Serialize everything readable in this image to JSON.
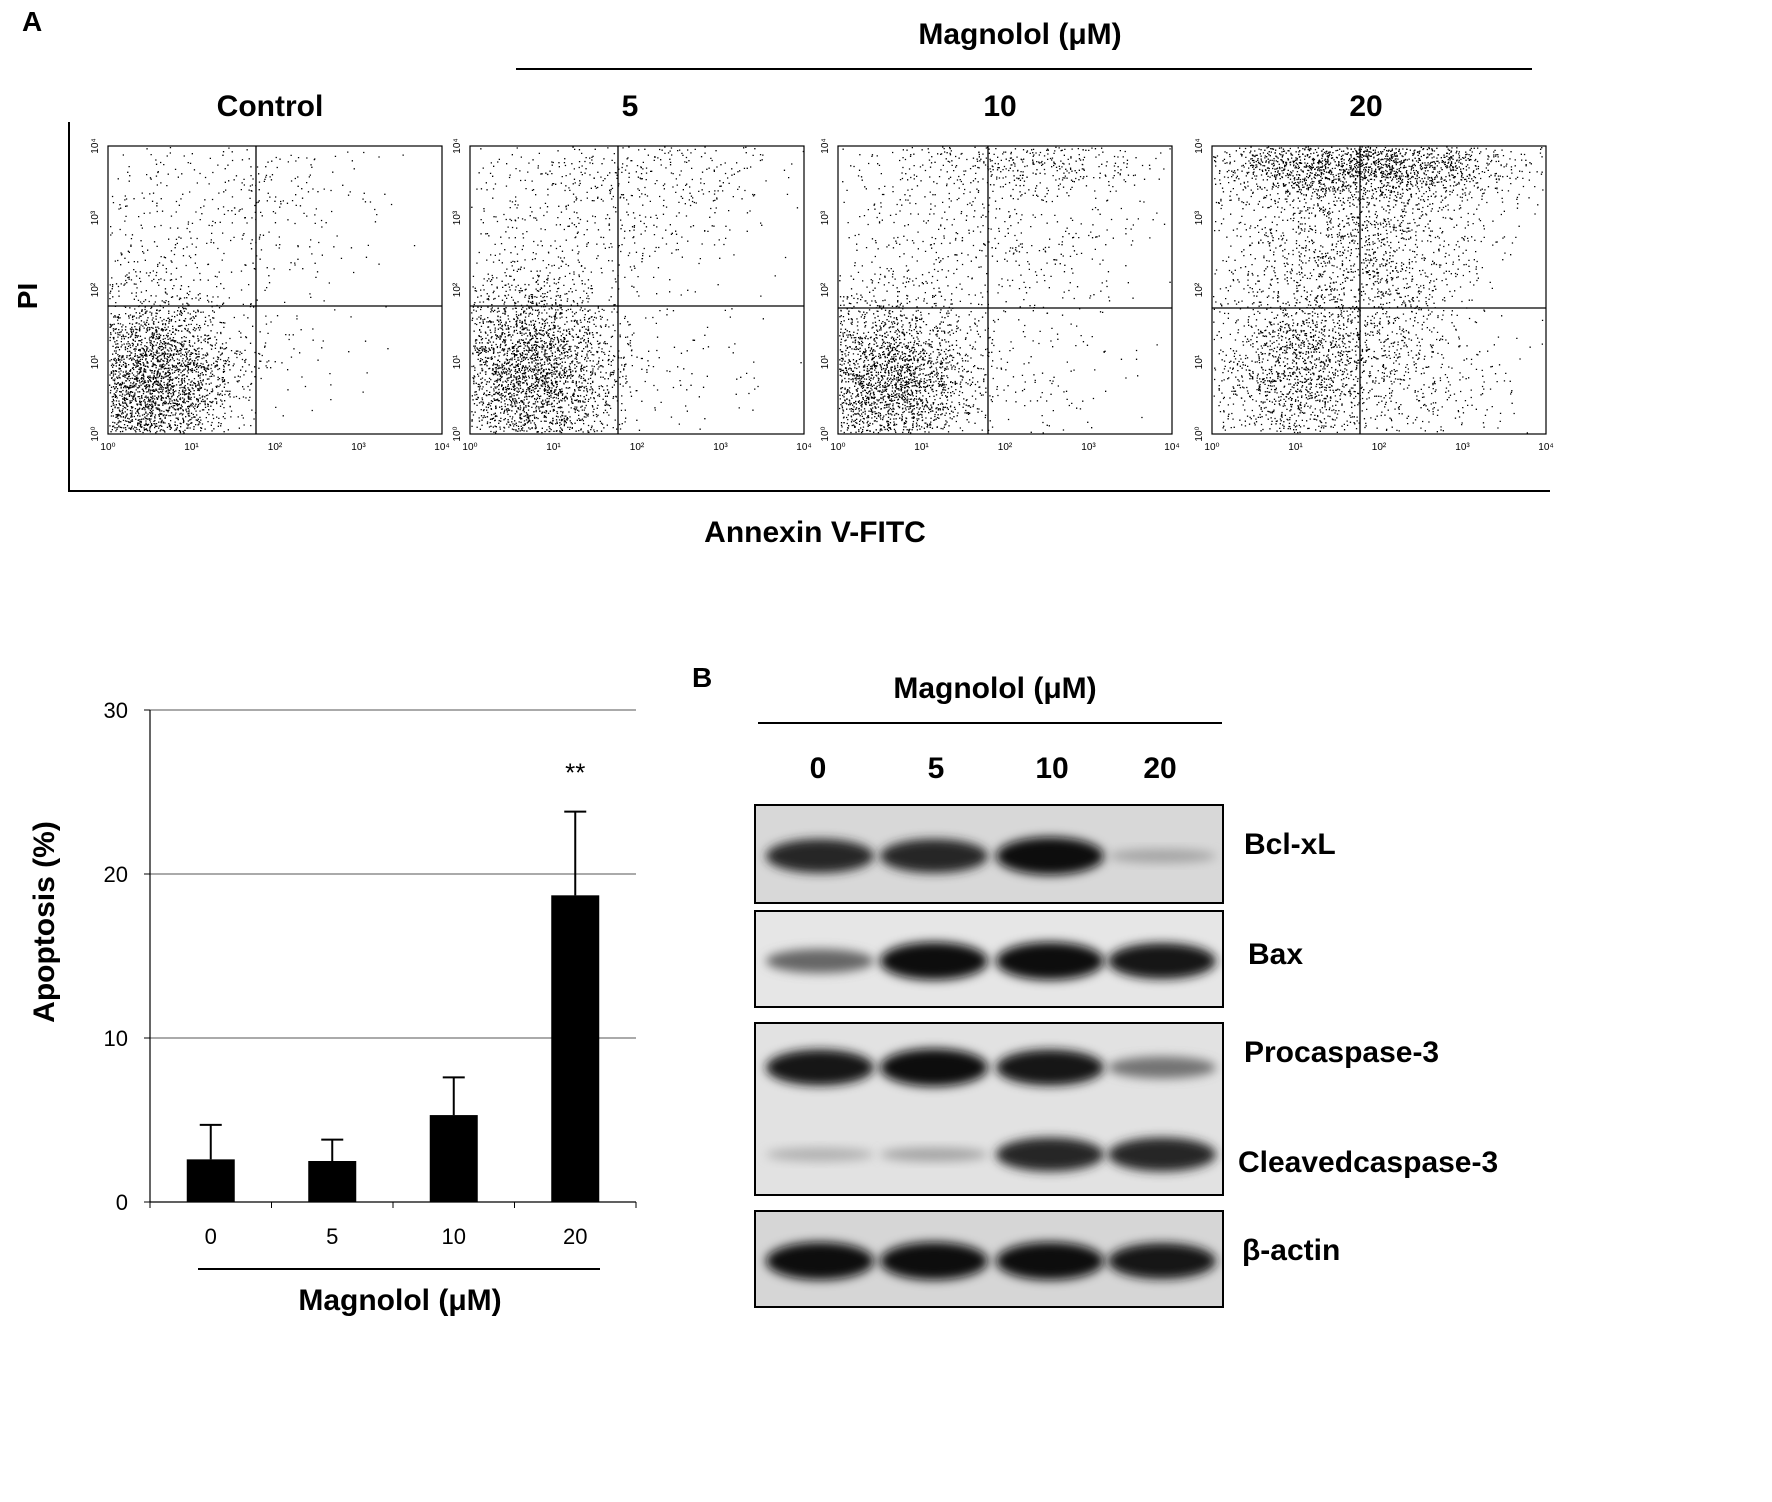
{
  "panel_a": {
    "letter": "A",
    "treatment_header": "Magnolol  (μM)",
    "y_axis_label": "PI",
    "x_axis_label": "Annexin V-FITC",
    "plots": [
      {
        "title": "Control"
      },
      {
        "title": "5"
      },
      {
        "title": "10"
      },
      {
        "title": "20"
      }
    ],
    "axis_ticks": [
      "10⁰",
      "10¹",
      "10²",
      "10³",
      "10⁴"
    ]
  },
  "chart_data": {
    "type": "bar",
    "categories": [
      "0",
      "5",
      "10",
      "20"
    ],
    "values": [
      2.6,
      2.5,
      5.3,
      18.7
    ],
    "errors": [
      2.1,
      1.3,
      2.3,
      5.1
    ],
    "annotations": [
      "",
      "",
      "",
      "**"
    ],
    "ylabel": "Apoptosis (%)",
    "xlabel": "Magnolol  (μM)",
    "ylim": [
      0,
      30
    ],
    "yticks": [
      "0",
      "10",
      "20",
      "30"
    ],
    "grid": true,
    "bar_color": "#000000"
  },
  "panel_b": {
    "letter": "B",
    "treatment_header": "Magnolol (μM)",
    "doses": [
      "0",
      "5",
      "10",
      "20"
    ],
    "band_labels": [
      "Bcl-xL",
      "Bax",
      "Procaspase-3",
      "Cleavedcaspase-3",
      "β-actin"
    ],
    "band_intensity": {
      "Bcl-xL": [
        0.85,
        0.85,
        0.95,
        0.35
      ],
      "Bax": [
        0.6,
        0.95,
        0.95,
        0.9
      ],
      "Procaspase-3": [
        0.9,
        0.95,
        0.9,
        0.55
      ],
      "Cleavedcaspase-3": [
        0.3,
        0.35,
        0.85,
        0.85
      ],
      "β-actin": [
        0.95,
        0.95,
        0.95,
        0.9
      ]
    }
  }
}
